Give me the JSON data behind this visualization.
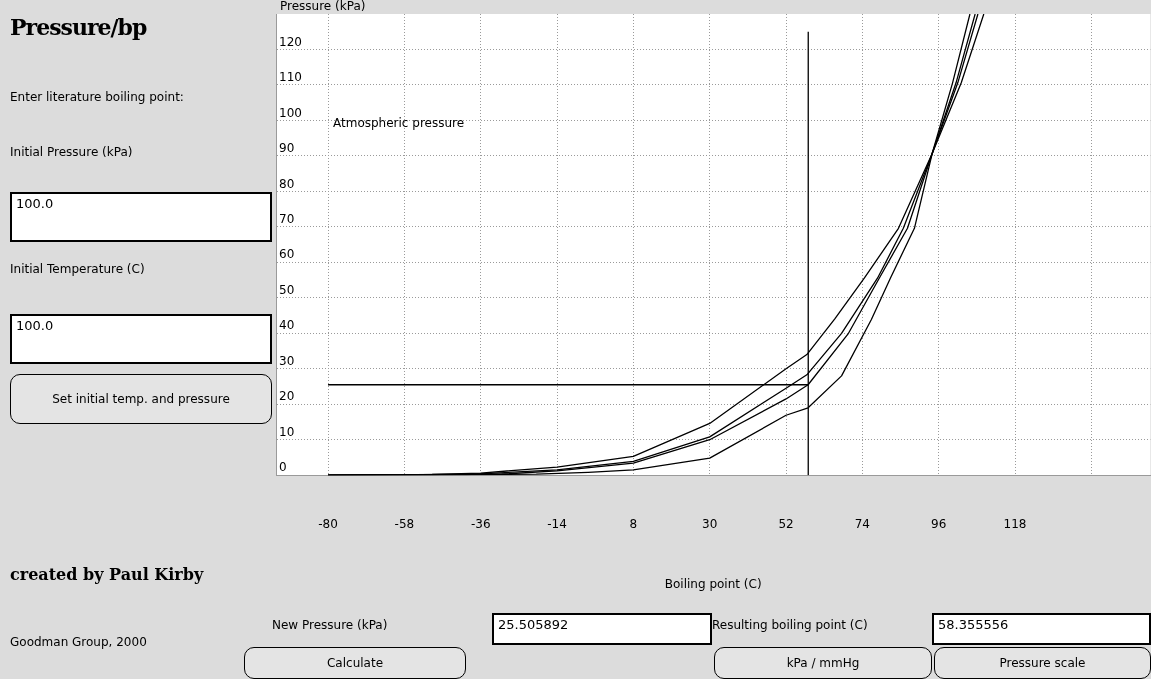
{
  "chart_data": {
    "type": "line",
    "title": "Pressure/bp",
    "xlabel": "Boiling point (C)",
    "ylabel": "Pressure (kPa)",
    "xlim": [
      -95,
      157
    ],
    "xticks": [
      -80,
      -58,
      -36,
      -14,
      8,
      30,
      52,
      74,
      96,
      118,
      {
        "value": 140,
        "label": null
      }
    ],
    "ylim": [
      0,
      130
    ],
    "yticks": [
      0,
      10,
      20,
      30,
      40,
      50,
      60,
      70,
      80,
      90,
      100,
      110,
      120
    ],
    "grid": true,
    "marker": "none",
    "series": [
      {
        "color": "#000000",
        "x": [
          -80,
          -50,
          -36,
          -14,
          8,
          30,
          52,
          58,
          66,
          74.6,
          84.4,
          94.1,
          102.5,
          109
        ],
        "values": [
          0,
          0.2,
          0.6,
          2.3,
          5.3,
          14.6,
          30,
          34,
          44,
          55.6,
          69.6,
          90.6,
          110.6,
          130
        ]
      },
      {
        "color": "#000000",
        "x": [
          -80,
          -40,
          -14,
          8,
          30,
          52,
          58,
          68,
          78.4,
          85.8,
          94.1,
          101.5,
          107.3
        ],
        "values": [
          0,
          0.2,
          1.5,
          3.9,
          10.8,
          24.5,
          28.3,
          40,
          55.6,
          69.6,
          90.6,
          110.6,
          130
        ]
      },
      {
        "color": "#000000",
        "x": [
          -80,
          -30,
          -14,
          8,
          30,
          52,
          58.36,
          70,
          78.9,
          87,
          94.1,
          101,
          106.5
        ],
        "values": [
          0,
          0.3,
          1.2,
          3.4,
          10,
          21.5,
          25.5,
          40,
          55.6,
          69.6,
          90.6,
          110.6,
          130
        ]
      },
      {
        "color": "#000000",
        "x": [
          -80,
          -20,
          -5,
          8,
          30,
          52,
          58.36,
          68,
          76.6,
          82.1,
          89,
          94.1,
          100,
          105
        ],
        "values": [
          0,
          0.3,
          0.8,
          1.5,
          4.8,
          16.9,
          19,
          28,
          43.9,
          55.6,
          69.6,
          90.6,
          110.6,
          130
        ]
      },
      {
        "color": "#000000",
        "x": [
          -80,
          58.4
        ],
        "values": [
          25.5,
          25.5
        ]
      },
      {
        "color": "#000000",
        "x": [
          58.4,
          58.4
        ],
        "values": [
          0,
          125
        ]
      }
    ],
    "annotations": [
      "Atmospheric pressure",
      "Enter literature boiling point:",
      "Initial Pressure (kPa)",
      "100.0",
      "Initial Temperature (C)",
      "100.0",
      "Set initial temp. and pressure",
      "created by Paul Kirby",
      "Goodman Group, 2000",
      "New Pressure (kPa)",
      "25.505892",
      "Resulting boiling point (C)",
      "58.355556",
      "Calculate",
      "kPa / mmHg",
      "Pressure scale"
    ]
  }
}
